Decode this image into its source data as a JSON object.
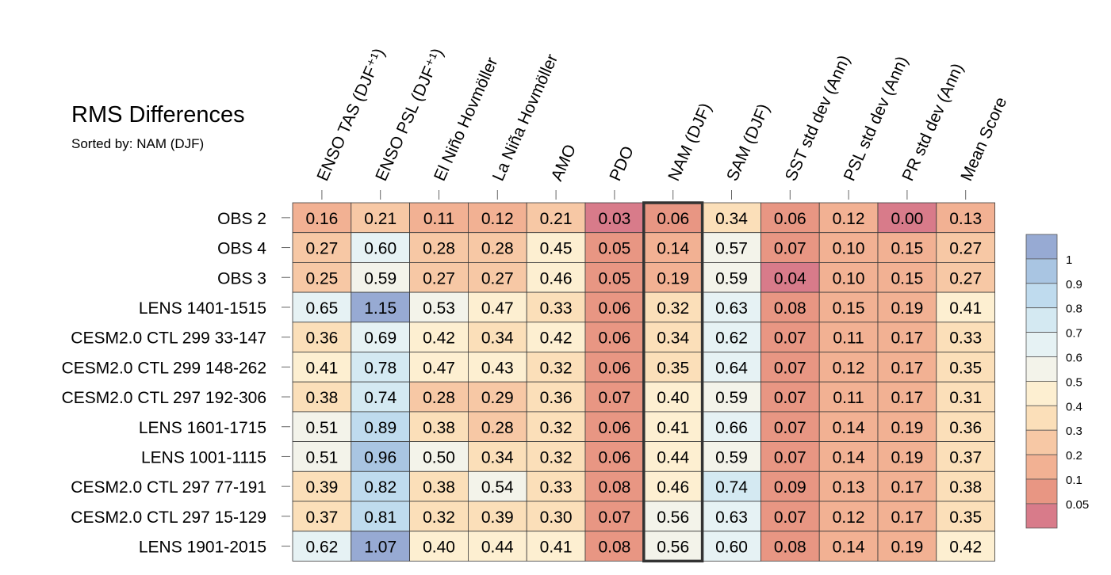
{
  "title": "RMS Differences",
  "subtitle": "Sorted by: NAM (DJF)",
  "chart_data": {
    "type": "heatmap",
    "title": "RMS Differences",
    "subtitle": "Sorted by: NAM (DJF)",
    "highlighted_column": "NAM (DJF)",
    "columns": [
      "ENSO TAS (DJF⁺¹)",
      "ENSO PSL (DJF⁺¹)",
      "El Niño Hovmöller",
      "La Niña Hovmöller",
      "AMO",
      "PDO",
      "NAM (DJF)",
      "SAM (DJF)",
      "SST std dev (Ann)",
      "PSL std dev (Ann)",
      "PR std dev (Ann)",
      "Mean Score"
    ],
    "rows": [
      "OBS 2",
      "OBS 4",
      "OBS 3",
      "LENS 1401-1515",
      "CESM2.0 CTL 299 33-147",
      "CESM2.0 CTL 299 148-262",
      "CESM2.0 CTL 297 192-306",
      "LENS 1601-1715",
      "LENS 1001-1115",
      "CESM2.0 CTL 297 77-191",
      "CESM2.0 CTL 297 15-129",
      "LENS 1901-2015"
    ],
    "values": [
      [
        "0.16",
        "0.21",
        "0.11",
        "0.12",
        "0.21",
        "0.03",
        "0.06",
        "0.34",
        "0.06",
        "0.12",
        "0.00",
        "0.13"
      ],
      [
        "0.27",
        "0.60",
        "0.28",
        "0.28",
        "0.45",
        "0.05",
        "0.14",
        "0.57",
        "0.07",
        "0.10",
        "0.15",
        "0.27"
      ],
      [
        "0.25",
        "0.59",
        "0.27",
        "0.27",
        "0.46",
        "0.05",
        "0.19",
        "0.59",
        "0.04",
        "0.10",
        "0.15",
        "0.27"
      ],
      [
        "0.65",
        "1.15",
        "0.53",
        "0.47",
        "0.33",
        "0.06",
        "0.32",
        "0.63",
        "0.08",
        "0.15",
        "0.19",
        "0.41"
      ],
      [
        "0.36",
        "0.69",
        "0.42",
        "0.34",
        "0.42",
        "0.06",
        "0.34",
        "0.62",
        "0.07",
        "0.11",
        "0.17",
        "0.33"
      ],
      [
        "0.41",
        "0.78",
        "0.47",
        "0.43",
        "0.32",
        "0.06",
        "0.35",
        "0.64",
        "0.07",
        "0.12",
        "0.17",
        "0.35"
      ],
      [
        "0.38",
        "0.74",
        "0.28",
        "0.29",
        "0.36",
        "0.07",
        "0.40",
        "0.59",
        "0.07",
        "0.11",
        "0.17",
        "0.31"
      ],
      [
        "0.51",
        "0.89",
        "0.38",
        "0.28",
        "0.32",
        "0.06",
        "0.41",
        "0.66",
        "0.07",
        "0.14",
        "0.19",
        "0.36"
      ],
      [
        "0.51",
        "0.96",
        "0.50",
        "0.34",
        "0.32",
        "0.06",
        "0.44",
        "0.59",
        "0.07",
        "0.14",
        "0.19",
        "0.37"
      ],
      [
        "0.39",
        "0.82",
        "0.38",
        "0.54",
        "0.33",
        "0.08",
        "0.46",
        "0.74",
        "0.09",
        "0.13",
        "0.17",
        "0.38"
      ],
      [
        "0.37",
        "0.81",
        "0.32",
        "0.39",
        "0.30",
        "0.07",
        "0.56",
        "0.63",
        "0.07",
        "0.12",
        "0.17",
        "0.35"
      ],
      [
        "0.62",
        "1.07",
        "0.40",
        "0.44",
        "0.41",
        "0.08",
        "0.56",
        "0.60",
        "0.08",
        "0.14",
        "0.19",
        "0.42"
      ]
    ],
    "colorbar": {
      "labels": [
        "1",
        "0.9",
        "0.8",
        "0.7",
        "0.6",
        "0.5",
        "0.4",
        "0.3",
        "0.2",
        "0.1",
        "0.05"
      ],
      "thresholds": [
        1,
        0.9,
        0.8,
        0.7,
        0.6,
        0.5,
        0.4,
        0.3,
        0.2,
        0.1,
        0.05
      ],
      "colors": [
        "#97aad3",
        "#a9c5e2",
        "#bfdbee",
        "#d4e9f2",
        "#e6f2f4",
        "#f3f3ea",
        "#fdefd1",
        "#fbdfb9",
        "#f7c8a5",
        "#f2b193",
        "#e89683",
        "#d87b8a"
      ]
    }
  }
}
